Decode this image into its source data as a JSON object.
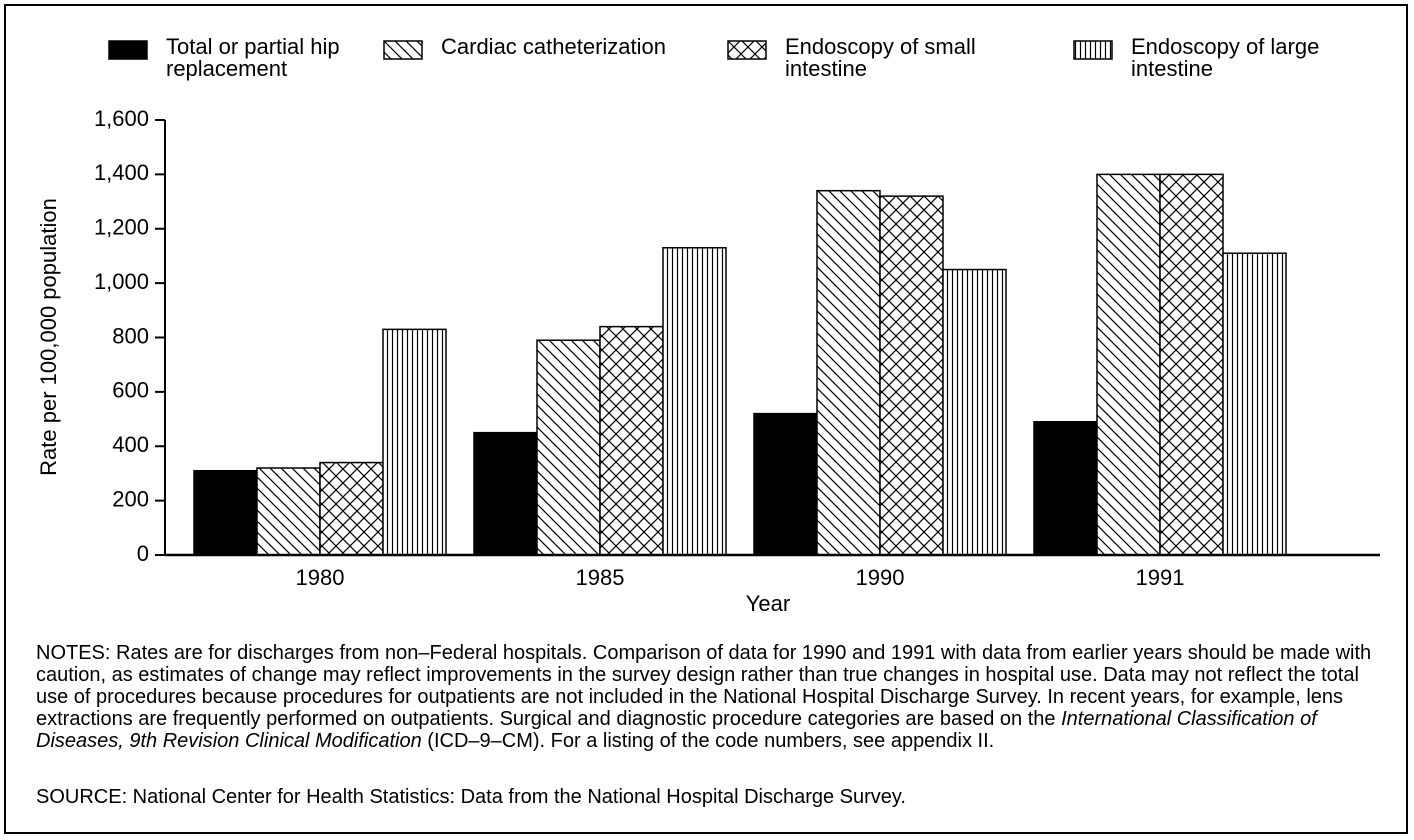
{
  "chart_data": {
    "type": "bar",
    "categories": [
      "1980",
      "1985",
      "1990",
      "1991"
    ],
    "series": [
      {
        "name": "Total or partial hip replacement",
        "color": "#000000",
        "pattern": "solid",
        "values": [
          310,
          450,
          520,
          490
        ]
      },
      {
        "name": "Cardiac catheterization",
        "color": "#000000",
        "pattern": "diagonal",
        "values": [
          320,
          790,
          1340,
          1400
        ]
      },
      {
        "name": "Endoscopy of small intestine",
        "color": "#000000",
        "pattern": "crosshatch",
        "values": [
          340,
          840,
          1320,
          1400
        ]
      },
      {
        "name": "Endoscopy of large intestine",
        "color": "#000000",
        "pattern": "vertical",
        "values": [
          830,
          1130,
          1050,
          1110
        ]
      }
    ],
    "ylabel": "Rate per 100,000 population",
    "xlabel": "Year",
    "ylim": [
      0,
      1600
    ],
    "yticks": [
      0,
      200,
      400,
      600,
      800,
      {
        "value": 1000,
        "label": "1,000"
      },
      {
        "value": 1200,
        "label": "1,200"
      },
      {
        "value": 1400,
        "label": "1,400"
      },
      {
        "value": 1600,
        "label": "1,600"
      }
    ],
    "grid": false,
    "legend": "top",
    "notes": [
      "NOTES: Rates are for discharges from non–Federal hospitals. Comparison of data for 1990 and 1991 with data from earlier years should be made with caution, as estimates of change may reflect improvements in the survey design rather than true changes in hospital use. Data may not reflect the total use of procedures because procedures for outpatients are not included in the National Hospital Discharge Survey. In recent years, for example, lens extractions are frequently performed on outpatients. Surgical and diagnostic procedure categories are based on the ",
      "International Classification of Diseases, 9th Revision Clinical Modification",
      "  (ICD–9–CM). For a listing of the code numbers, see appendix II."
    ],
    "source": "SOURCE: National Center for Health Statistics: Data from the National Hospital Discharge Survey."
  }
}
